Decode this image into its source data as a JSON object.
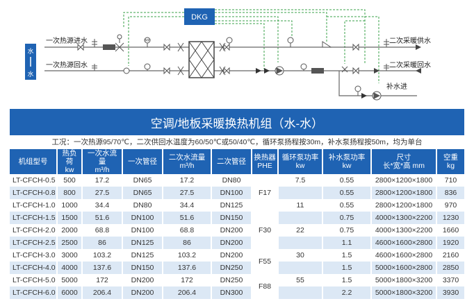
{
  "diagram": {
    "controller_label": "DKG",
    "side_label_top": "水",
    "side_label_bottom": "水",
    "left_labels": [
      "一次热源进水",
      "一次热源回水"
    ],
    "right_labels": [
      "二次采暖供水",
      "二次采暖回水",
      "补水进"
    ],
    "gauge_label": "MP",
    "colors": {
      "pipe": "#666666",
      "control_line": "#3aa04a",
      "controller_fill": "#1f63b3",
      "side_fill": "#1f63b3"
    }
  },
  "banner": {
    "title": "空调/地板采暖换热机组（水-水）"
  },
  "conditions": "工况：一次热源95/70℃，二次供回水温度为60/50℃或50/40℃，循环泵扬程按30m，补水泵扬程按50m，均为单台",
  "table": {
    "headers": [
      [
        "机组型号"
      ],
      [
        "热负荷",
        "kw"
      ],
      [
        "一次水流量",
        "m³/h"
      ],
      [
        "一次管径"
      ],
      [
        "二次水流量",
        "m³/h"
      ],
      [
        "二次管径"
      ],
      [
        "换热器",
        "PHE"
      ],
      [
        "循环泵功率",
        "kw"
      ],
      [
        "补水泵功率",
        "kw"
      ],
      [
        "尺寸",
        "长*宽*高 mm"
      ],
      [
        "空重",
        "kg"
      ]
    ],
    "rows": [
      [
        "LT-CFCH-0.5",
        "500",
        "17.2",
        "DN65",
        "17.2",
        "DN80",
        "0.55",
        "2800×1200×1800",
        "710"
      ],
      [
        "LT-CFCH-0.8",
        "800",
        "27.5",
        "DN65",
        "27.5",
        "DN100",
        "0.55",
        "2800×1200×1800",
        "836"
      ],
      [
        "LT-CFCH-1.0",
        "1000",
        "34.4",
        "DN80",
        "34.4",
        "DN125",
        "0.55",
        "2800×1200×1800",
        "970"
      ],
      [
        "LT-CFCH-1.5",
        "1500",
        "51.6",
        "DN100",
        "51.6",
        "DN150",
        "0.75",
        "4000×1300×2200",
        "1230"
      ],
      [
        "LT-CFCH-2.0",
        "2000",
        "68.8",
        "DN100",
        "68.8",
        "DN200",
        "0.75",
        "4000×1300×2200",
        "1660"
      ],
      [
        "LT-CFCH-2.5",
        "2500",
        "86",
        "DN125",
        "86",
        "DN200",
        "1.1",
        "4600×1600×2800",
        "1920"
      ],
      [
        "LT-CFCH-3.0",
        "3000",
        "103.2",
        "DN125",
        "103.2",
        "DN200",
        "1.5",
        "4600×1600×2800",
        "2160"
      ],
      [
        "LT-CFCH-4.0",
        "4000",
        "137.6",
        "DN150",
        "137.6",
        "DN250",
        "1.5",
        "5000×1600×2800",
        "2850"
      ],
      [
        "LT-CFCH-5.0",
        "5000",
        "172",
        "DN200",
        "172",
        "DN250",
        "1.5",
        "5000×1800×3200",
        "3370"
      ],
      [
        "LT-CFCH-6.0",
        "6000",
        "206.4",
        "DN200",
        "206.4",
        "DN300",
        "2.2",
        "5000×1800×3200",
        "3930"
      ]
    ],
    "phe_groups": [
      "F17",
      "F30",
      "F55",
      "F88"
    ],
    "pump_groups": [
      "7.5",
      "11",
      "22",
      "30",
      "55"
    ]
  }
}
